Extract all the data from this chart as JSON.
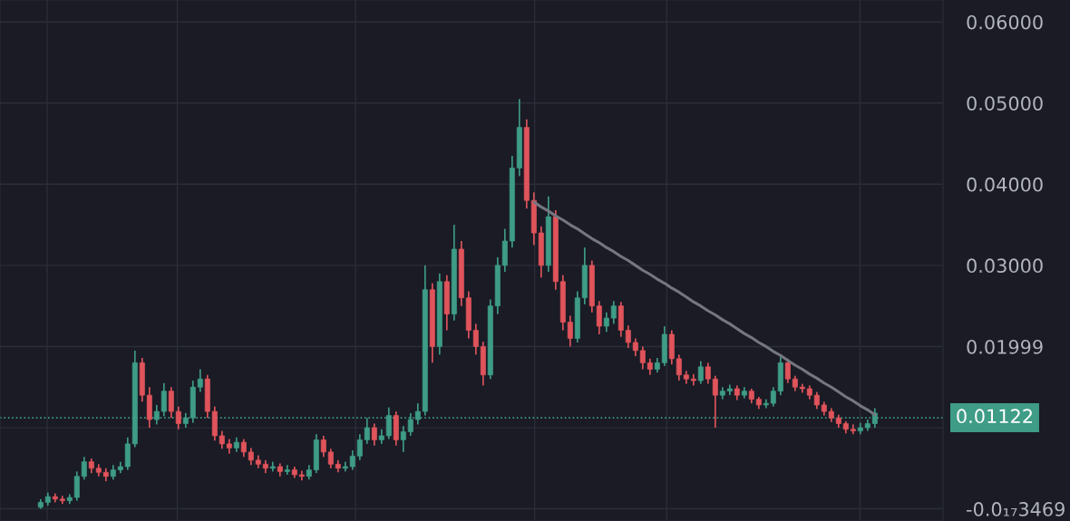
{
  "chart_data": {
    "type": "candlestick",
    "categories": [
      null,
      null,
      null,
      null,
      null,
      null,
      null,
      null,
      null,
      null,
      null,
      null,
      null,
      null,
      null,
      null,
      null,
      null,
      null,
      null,
      null,
      null,
      null,
      null,
      null,
      null,
      null,
      null,
      null,
      null,
      null,
      null,
      null,
      null,
      null,
      null,
      null,
      null,
      null,
      null,
      null,
      null,
      null,
      null,
      null,
      null,
      null,
      null,
      null,
      null,
      null,
      null,
      null,
      null,
      null,
      null,
      null,
      null,
      null,
      null,
      null,
      null,
      null,
      null,
      null,
      null,
      null,
      null,
      null,
      null,
      null,
      null,
      null,
      null,
      null,
      null,
      null,
      null,
      null,
      null,
      null,
      null,
      null,
      null,
      null,
      null,
      null,
      null,
      null,
      null,
      null,
      null,
      null,
      null,
      null,
      null,
      null,
      null,
      null,
      null,
      null,
      null,
      null,
      null,
      null,
      null,
      null,
      null,
      null,
      null,
      null,
      null,
      null,
      null,
      null,
      null
    ],
    "ohlc": [
      [
        0.0002,
        0.0012,
        0.0,
        0.0008
      ],
      [
        0.0008,
        0.002,
        0.0004,
        0.0015
      ],
      [
        0.0015,
        0.0019,
        0.0008,
        0.0012
      ],
      [
        0.0012,
        0.0016,
        0.0006,
        0.001
      ],
      [
        0.001,
        0.0018,
        0.0006,
        0.0014
      ],
      [
        0.0014,
        0.0046,
        0.001,
        0.004
      ],
      [
        0.004,
        0.0064,
        0.0036,
        0.0058
      ],
      [
        0.0058,
        0.0062,
        0.0044,
        0.005
      ],
      [
        0.005,
        0.0055,
        0.004,
        0.0045
      ],
      [
        0.0045,
        0.005,
        0.0034,
        0.004
      ],
      [
        0.004,
        0.0054,
        0.0036,
        0.0048
      ],
      [
        0.0048,
        0.0058,
        0.0044,
        0.0052
      ],
      [
        0.0052,
        0.0088,
        0.0048,
        0.008
      ],
      [
        0.008,
        0.0195,
        0.0076,
        0.018
      ],
      [
        0.018,
        0.0186,
        0.0132,
        0.014
      ],
      [
        0.014,
        0.015,
        0.01,
        0.011
      ],
      [
        0.011,
        0.0128,
        0.0104,
        0.012
      ],
      [
        0.012,
        0.0155,
        0.0114,
        0.0145
      ],
      [
        0.0145,
        0.015,
        0.0112,
        0.012
      ],
      [
        0.012,
        0.0126,
        0.0098,
        0.0105
      ],
      [
        0.0105,
        0.0118,
        0.01,
        0.0112
      ],
      [
        0.0112,
        0.0158,
        0.0106,
        0.015
      ],
      [
        0.015,
        0.0172,
        0.0144,
        0.016
      ],
      [
        0.016,
        0.0165,
        0.0112,
        0.012
      ],
      [
        0.012,
        0.0126,
        0.0084,
        0.009
      ],
      [
        0.009,
        0.0096,
        0.0074,
        0.008
      ],
      [
        0.008,
        0.0086,
        0.0068,
        0.0075
      ],
      [
        0.0075,
        0.0088,
        0.007,
        0.0082
      ],
      [
        0.0082,
        0.0086,
        0.0064,
        0.007
      ],
      [
        0.007,
        0.0075,
        0.0054,
        0.006
      ],
      [
        0.006,
        0.0066,
        0.005,
        0.0055
      ],
      [
        0.0055,
        0.006,
        0.0044,
        0.005
      ],
      [
        0.005,
        0.0058,
        0.0046,
        0.0052
      ],
      [
        0.0052,
        0.0056,
        0.004,
        0.0046
      ],
      [
        0.0046,
        0.0054,
        0.0042,
        0.0048
      ],
      [
        0.0048,
        0.0052,
        0.0038,
        0.0042
      ],
      [
        0.0042,
        0.0047,
        0.0035,
        0.004
      ],
      [
        0.004,
        0.0054,
        0.0036,
        0.0048
      ],
      [
        0.0048,
        0.0092,
        0.0044,
        0.0085
      ],
      [
        0.0085,
        0.009,
        0.0064,
        0.007
      ],
      [
        0.007,
        0.0074,
        0.005,
        0.0055
      ],
      [
        0.0055,
        0.006,
        0.0045,
        0.005
      ],
      [
        0.005,
        0.0058,
        0.0046,
        0.0052
      ],
      [
        0.0052,
        0.0072,
        0.0048,
        0.0065
      ],
      [
        0.0065,
        0.0092,
        0.006,
        0.0085
      ],
      [
        0.0085,
        0.0112,
        0.008,
        0.01
      ],
      [
        0.01,
        0.0105,
        0.0078,
        0.0085
      ],
      [
        0.0085,
        0.0098,
        0.008,
        0.009
      ],
      [
        0.009,
        0.0125,
        0.0086,
        0.0115
      ],
      [
        0.0115,
        0.012,
        0.0078,
        0.0085
      ],
      [
        0.0085,
        0.0102,
        0.007,
        0.0095
      ],
      [
        0.0095,
        0.0118,
        0.009,
        0.011
      ],
      [
        0.011,
        0.013,
        0.0104,
        0.012
      ],
      [
        0.012,
        0.03,
        0.0115,
        0.027
      ],
      [
        0.027,
        0.0278,
        0.018,
        0.02
      ],
      [
        0.02,
        0.029,
        0.019,
        0.028
      ],
      [
        0.028,
        0.0288,
        0.022,
        0.024
      ],
      [
        0.024,
        0.035,
        0.0232,
        0.032
      ],
      [
        0.032,
        0.033,
        0.025,
        0.026
      ],
      [
        0.026,
        0.0268,
        0.021,
        0.022
      ],
      [
        0.022,
        0.0228,
        0.019,
        0.02
      ],
      [
        0.02,
        0.0206,
        0.0152,
        0.0165
      ],
      [
        0.0165,
        0.0258,
        0.016,
        0.025
      ],
      [
        0.025,
        0.031,
        0.024,
        0.03
      ],
      [
        0.03,
        0.0345,
        0.0292,
        0.033
      ],
      [
        0.033,
        0.0435,
        0.0322,
        0.042
      ],
      [
        0.042,
        0.0505,
        0.041,
        0.047
      ],
      [
        0.047,
        0.048,
        0.037,
        0.038
      ],
      [
        0.038,
        0.039,
        0.0325,
        0.034
      ],
      [
        0.034,
        0.0348,
        0.0285,
        0.03
      ],
      [
        0.03,
        0.0385,
        0.0292,
        0.036
      ],
      [
        0.036,
        0.0368,
        0.027,
        0.028
      ],
      [
        0.028,
        0.0288,
        0.022,
        0.023
      ],
      [
        0.023,
        0.0238,
        0.02,
        0.021
      ],
      [
        0.021,
        0.0268,
        0.0205,
        0.026
      ],
      [
        0.026,
        0.0322,
        0.0252,
        0.03
      ],
      [
        0.03,
        0.0306,
        0.0242,
        0.025
      ],
      [
        0.025,
        0.0256,
        0.0215,
        0.0225
      ],
      [
        0.0225,
        0.0242,
        0.0218,
        0.0235
      ],
      [
        0.0235,
        0.0256,
        0.0228,
        0.025
      ],
      [
        0.025,
        0.0255,
        0.0212,
        0.022
      ],
      [
        0.022,
        0.0226,
        0.0198,
        0.0205
      ],
      [
        0.0205,
        0.021,
        0.0188,
        0.0195
      ],
      [
        0.0195,
        0.02,
        0.0172,
        0.018
      ],
      [
        0.018,
        0.0185,
        0.0165,
        0.0172
      ],
      [
        0.0172,
        0.0186,
        0.0168,
        0.018
      ],
      [
        0.018,
        0.0225,
        0.0176,
        0.0215
      ],
      [
        0.0215,
        0.022,
        0.0178,
        0.0185
      ],
      [
        0.0185,
        0.019,
        0.0158,
        0.0165
      ],
      [
        0.0165,
        0.017,
        0.0154,
        0.016
      ],
      [
        0.016,
        0.0166,
        0.0152,
        0.0158
      ],
      [
        0.0158,
        0.0182,
        0.0154,
        0.0175
      ],
      [
        0.0175,
        0.018,
        0.0154,
        0.016
      ],
      [
        0.016,
        0.0164,
        0.01,
        0.014
      ],
      [
        0.014,
        0.015,
        0.0135,
        0.0145
      ],
      [
        0.0145,
        0.0153,
        0.014,
        0.0148
      ],
      [
        0.0148,
        0.0152,
        0.0134,
        0.014
      ],
      [
        0.014,
        0.015,
        0.0136,
        0.0145
      ],
      [
        0.0145,
        0.0148,
        0.013,
        0.0135
      ],
      [
        0.0135,
        0.0138,
        0.0123,
        0.0128
      ],
      [
        0.0128,
        0.0135,
        0.0124,
        0.013
      ],
      [
        0.013,
        0.015,
        0.0126,
        0.0145
      ],
      [
        0.0145,
        0.0188,
        0.014,
        0.018
      ],
      [
        0.018,
        0.0185,
        0.0155,
        0.016
      ],
      [
        0.016,
        0.0164,
        0.0145,
        0.015
      ],
      [
        0.015,
        0.0154,
        0.0143,
        0.0148
      ],
      [
        0.0148,
        0.0152,
        0.0135,
        0.014
      ],
      [
        0.014,
        0.0144,
        0.0123,
        0.0128
      ],
      [
        0.0128,
        0.0132,
        0.0115,
        0.012
      ],
      [
        0.012,
        0.0124,
        0.0107,
        0.0112
      ],
      [
        0.0112,
        0.0116,
        0.01,
        0.0105
      ],
      [
        0.0105,
        0.0108,
        0.0093,
        0.0098
      ],
      [
        0.0098,
        0.0104,
        0.0092,
        0.0096
      ],
      [
        0.0096,
        0.0106,
        0.0092,
        0.01
      ],
      [
        0.01,
        0.011,
        0.0096,
        0.0105
      ],
      [
        0.0105,
        0.0124,
        0.01,
        0.0118
      ]
    ],
    "colors": [
      "#3f9c86",
      "#3f9c86",
      "#e0545c",
      "#e0545c",
      "#3f9c86",
      "#3f9c86",
      "#3f9c86",
      "#e0545c",
      "#e0545c",
      "#e0545c",
      "#3f9c86",
      "#3f9c86",
      "#3f9c86",
      "#3f9c86",
      "#e0545c",
      "#e0545c",
      "#3f9c86",
      "#3f9c86",
      "#e0545c",
      "#e0545c",
      "#3f9c86",
      "#3f9c86",
      "#3f9c86",
      "#e0545c",
      "#e0545c",
      "#e0545c",
      "#e0545c",
      "#3f9c86",
      "#e0545c",
      "#e0545c",
      "#e0545c",
      "#e0545c",
      "#3f9c86",
      "#e0545c",
      "#3f9c86",
      "#e0545c",
      "#e0545c",
      "#3f9c86",
      "#3f9c86",
      "#e0545c",
      "#e0545c",
      "#e0545c",
      "#3f9c86",
      "#3f9c86",
      "#3f9c86",
      "#3f9c86",
      "#e0545c",
      "#3f9c86",
      "#3f9c86",
      "#e0545c",
      "#3f9c86",
      "#3f9c86",
      "#3f9c86",
      "#3f9c86",
      "#e0545c",
      "#3f9c86",
      "#e0545c",
      "#3f9c86",
      "#e0545c",
      "#e0545c",
      "#e0545c",
      "#e0545c",
      "#3f9c86",
      "#3f9c86",
      "#3f9c86",
      "#3f9c86",
      "#3f9c86",
      "#e0545c",
      "#e0545c",
      "#e0545c",
      "#3f9c86",
      "#e0545c",
      "#e0545c",
      "#e0545c",
      "#3f9c86",
      "#3f9c86",
      "#e0545c",
      "#e0545c",
      "#3f9c86",
      "#3f9c86",
      "#e0545c",
      "#e0545c",
      "#e0545c",
      "#e0545c",
      "#e0545c",
      "#3f9c86",
      "#3f9c86",
      "#e0545c",
      "#e0545c",
      "#e0545c",
      "#e0545c",
      "#3f9c86",
      "#e0545c",
      "#e0545c",
      "#3f9c86",
      "#3f9c86",
      "#e0545c",
      "#3f9c86",
      "#e0545c",
      "#e0545c",
      "#3f9c86",
      "#3f9c86",
      "#3f9c86",
      "#e0545c",
      "#e0545c",
      "#e0545c",
      "#e0545c",
      "#e0545c",
      "#e0545c",
      "#e0545c",
      "#e0545c",
      "#e0545c",
      "#e0545c",
      "#3f9c86",
      "#3f9c86",
      "#3f9c86"
    ],
    "series": [
      {
        "type": "line",
        "color": "#75777f",
        "values": [
          null,
          null,
          null,
          null,
          null,
          null,
          null,
          null,
          null,
          null,
          null,
          null,
          null,
          null,
          null,
          null,
          null,
          null,
          null,
          null,
          null,
          null,
          null,
          null,
          null,
          null,
          null,
          null,
          null,
          null,
          null,
          null,
          null,
          null,
          null,
          null,
          null,
          null,
          null,
          null,
          null,
          null,
          null,
          null,
          null,
          null,
          null,
          null,
          null,
          null,
          null,
          null,
          null,
          null,
          null,
          null,
          null,
          null,
          null,
          null,
          null,
          null,
          null,
          null,
          null,
          null,
          null,
          null,
          0.0378,
          0.0372,
          0.0367,
          0.0361,
          0.0356,
          0.035,
          0.0345,
          0.0339,
          0.0333,
          0.0328,
          0.0322,
          0.0317,
          0.0311,
          0.0306,
          0.03,
          0.0294,
          0.0289,
          0.0283,
          0.0278,
          0.0272,
          0.0267,
          0.0261,
          0.0255,
          0.025,
          0.0244,
          0.0239,
          0.0233,
          0.0228,
          0.0222,
          0.0216,
          0.0211,
          0.0205,
          0.02,
          0.0194,
          0.0189,
          0.0183,
          0.0177,
          0.0172,
          0.0166,
          0.0161,
          0.0155,
          0.015,
          0.0144,
          0.0138,
          0.0133,
          0.0127,
          0.0122,
          0.0116
        ]
      }
    ],
    "ylim": [
      -0.0015,
      0.0627
    ],
    "yticks": [
      {
        "value": -3.469e-18,
        "label": "-0.0₁₇3469"
      },
      {
        "value": 0.00999,
        "label": null
      },
      0.01999,
      {
        "value": 0.03,
        "label": "0.03000"
      },
      {
        "value": 0.04,
        "label": "0.04000"
      },
      {
        "value": 0.05,
        "label": "0.05000"
      },
      {
        "value": 0.06,
        "label": "0.06000"
      }
    ],
    "ref_lines": [
      {
        "axis": "y",
        "value": 0.01122,
        "label": "0.01122",
        "color": "#3f9c86",
        "line_style": "dotted"
      }
    ],
    "grid": true
  }
}
